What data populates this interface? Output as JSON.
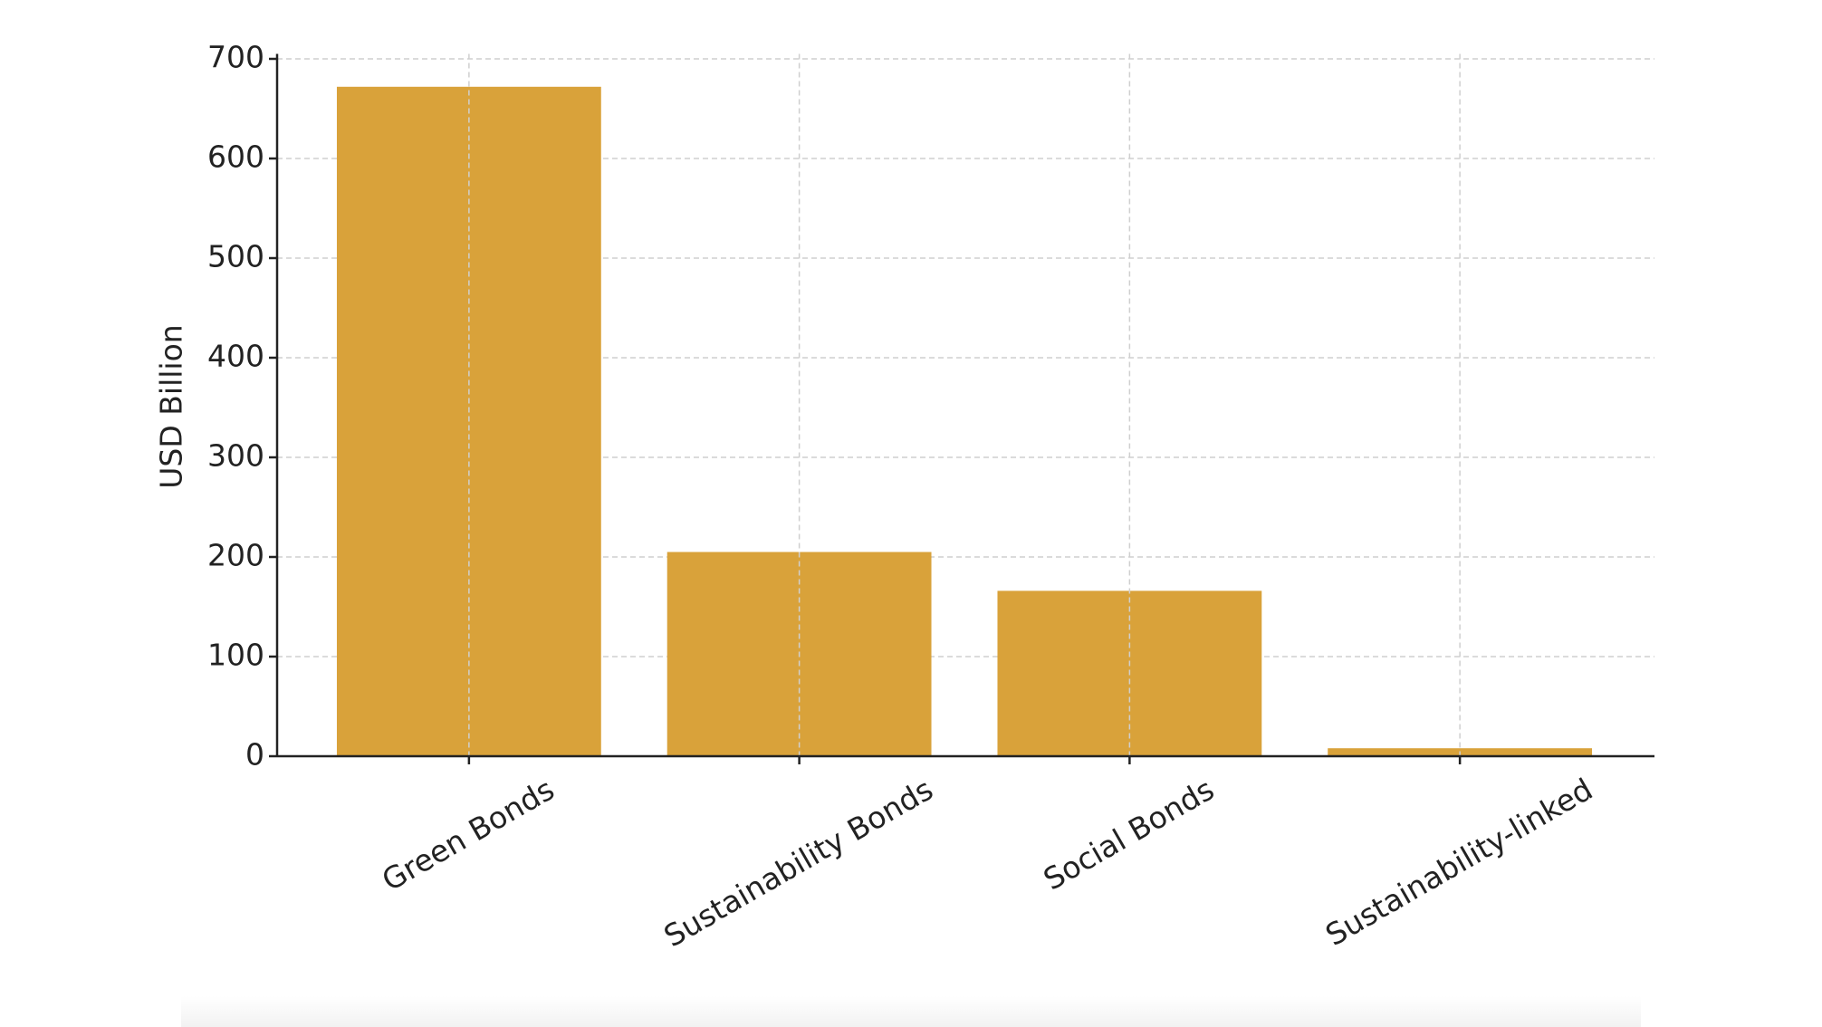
{
  "chart_data": {
    "type": "bar",
    "y_label": "USD Billion",
    "categories": [
      "Green Bonds",
      "Sustainability Bonds",
      "Social Bonds",
      "Sustainability-linked"
    ],
    "values": [
      672,
      205,
      166,
      8
    ],
    "color": "#d9a23a",
    "ylim": [
      0,
      705
    ],
    "yticks": [
      0,
      100,
      200,
      300,
      400,
      500,
      600,
      700
    ],
    "grid": true
  }
}
